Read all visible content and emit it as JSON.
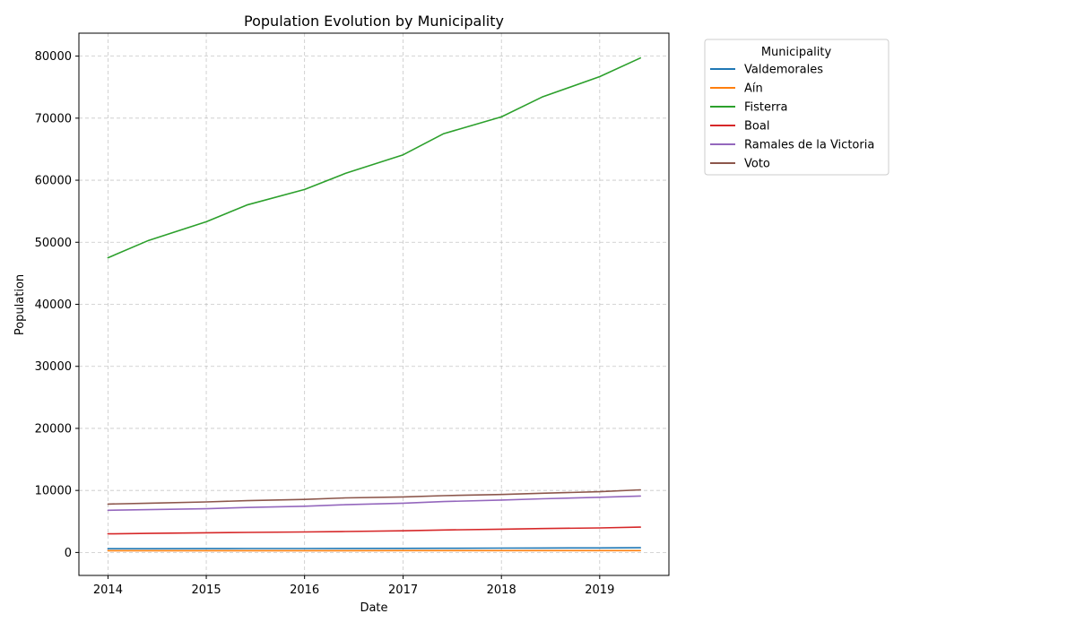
{
  "chart_data": {
    "type": "line",
    "title": "Population Evolution by Municipality",
    "xlabel": "Date",
    "ylabel": "Population",
    "x_ticks": [
      "2014",
      "2015",
      "2016",
      "2017",
      "2018",
      "2019"
    ],
    "y_ticks": [
      "0",
      "10000",
      "20000",
      "30000",
      "40000",
      "50000",
      "60000",
      "70000",
      "80000"
    ],
    "xlim": [
      "2013-09-15",
      "2019-09-15"
    ],
    "ylim": [
      -3700,
      83700
    ],
    "grid": true,
    "legend": {
      "title": "Municipality",
      "placement": "outside-top-right"
    },
    "x": [
      "2014-01-01",
      "2014-06-01",
      "2015-01-01",
      "2015-06-01",
      "2016-01-01",
      "2016-06-01",
      "2017-01-01",
      "2017-06-01",
      "2018-01-01",
      "2018-06-01",
      "2019-01-01",
      "2019-06-01"
    ],
    "series": [
      {
        "name": "Valdemorales",
        "color": "#1f77b4",
        "values": [
          600,
          610,
          620,
          630,
          640,
          650,
          665,
          680,
          700,
          720,
          740,
          760
        ]
      },
      {
        "name": "Aín",
        "color": "#ff7f0e",
        "values": [
          280,
          282,
          285,
          287,
          290,
          292,
          295,
          297,
          300,
          302,
          305,
          307
        ]
      },
      {
        "name": "Fisterra",
        "color": "#2ca02c",
        "values": [
          47500,
          50300,
          53300,
          56000,
          58500,
          61100,
          64100,
          67500,
          70200,
          73400,
          76700,
          79700
        ]
      },
      {
        "name": "Boal",
        "color": "#d62728",
        "values": [
          3000,
          3080,
          3180,
          3230,
          3300,
          3380,
          3500,
          3620,
          3750,
          3850,
          3950,
          4080
        ]
      },
      {
        "name": "Ramales de la Victoria",
        "color": "#9467bd",
        "values": [
          6800,
          6900,
          7050,
          7250,
          7450,
          7700,
          7950,
          8200,
          8450,
          8650,
          8900,
          9100
        ]
      },
      {
        "name": "Voto",
        "color": "#8c564b",
        "values": [
          7800,
          7950,
          8150,
          8350,
          8550,
          8800,
          8950,
          9150,
          9350,
          9550,
          9800,
          10100
        ]
      }
    ]
  }
}
